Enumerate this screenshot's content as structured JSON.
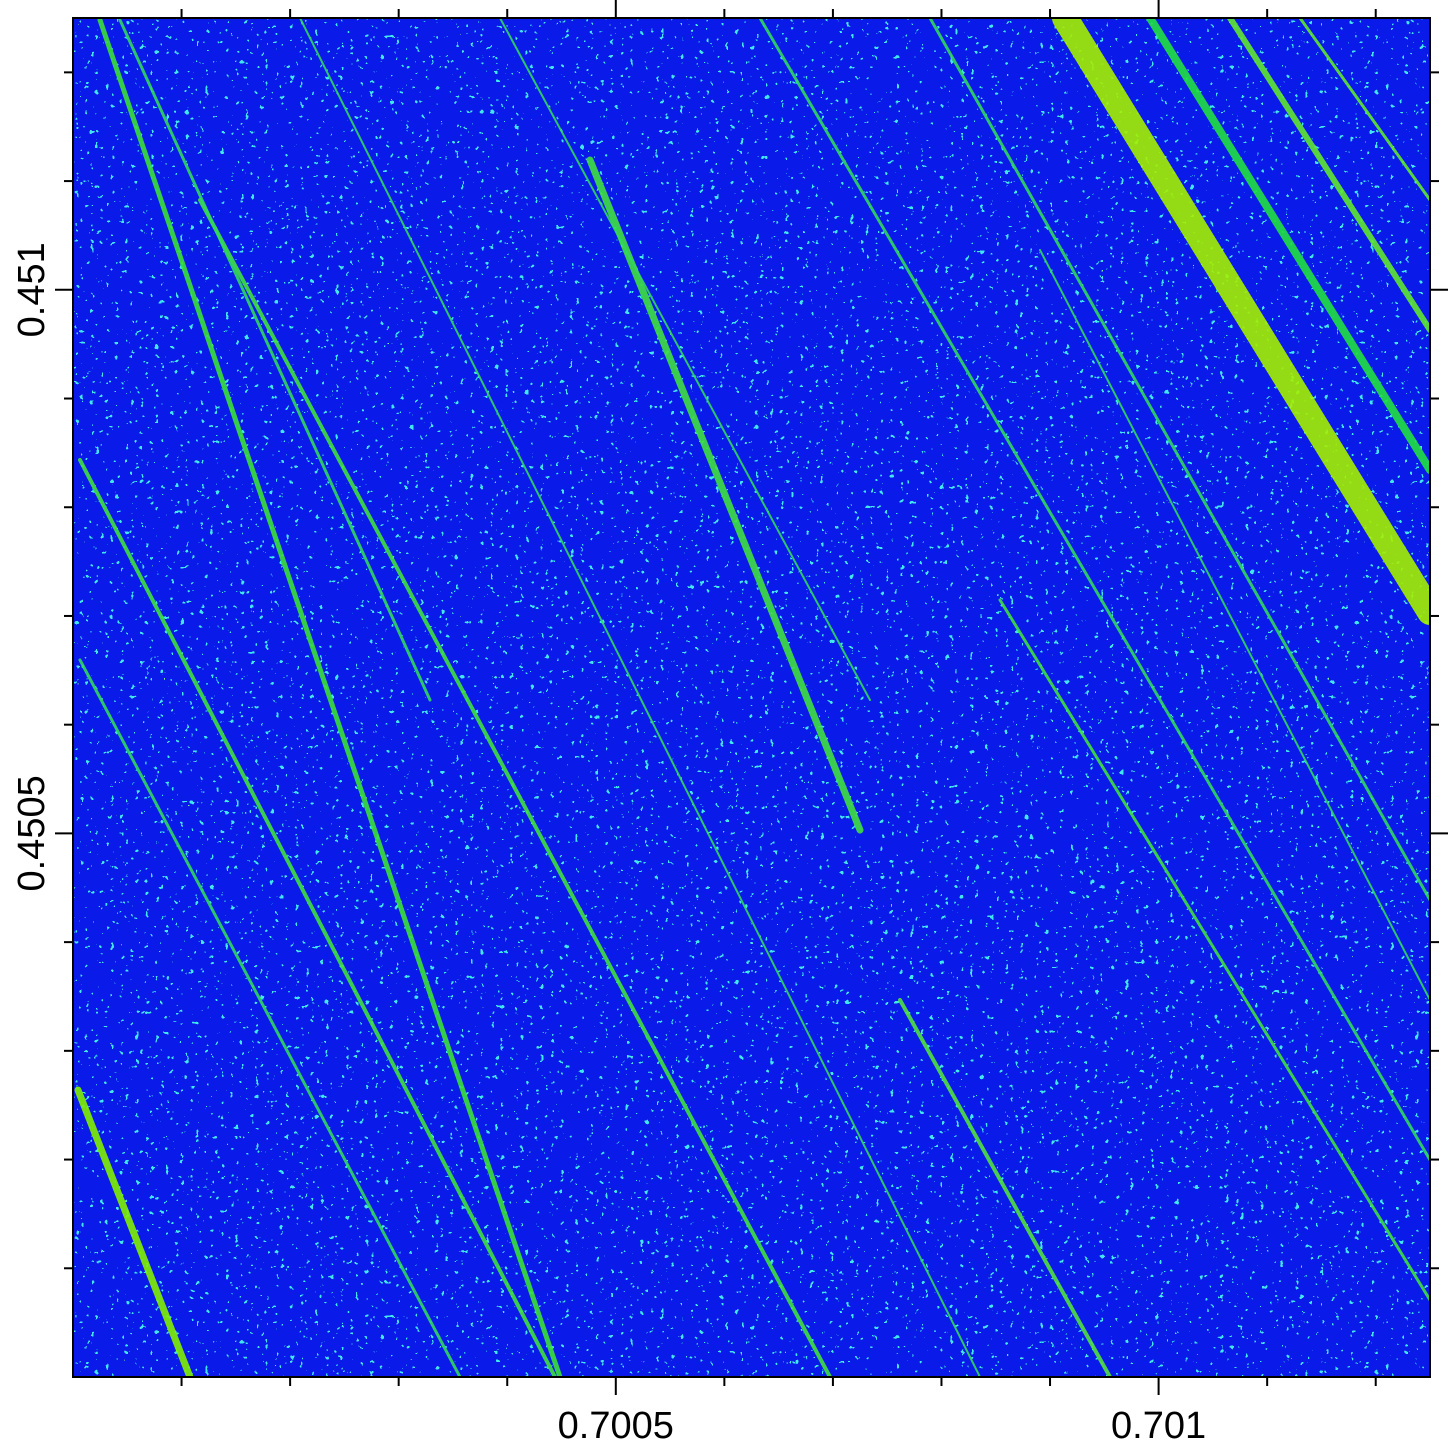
{
  "chart_data": {
    "type": "heatmap",
    "xlim": [
      0.7,
      0.70125
    ],
    "ylim": [
      0.45,
      0.45125
    ],
    "xticks": [
      0.7005,
      0.701
    ],
    "yticks": [
      0.4505,
      0.451
    ],
    "xminor_ticks": [
      0.7001,
      0.7002,
      0.7003,
      0.7004,
      0.7006,
      0.7007,
      0.7008,
      0.7009,
      0.7011,
      0.7012
    ],
    "yminor_ticks": [
      0.4501,
      0.4502,
      0.4503,
      0.4504,
      0.4506,
      0.4507,
      0.4508,
      0.4509,
      0.4511,
      0.4512
    ]
  }
}
